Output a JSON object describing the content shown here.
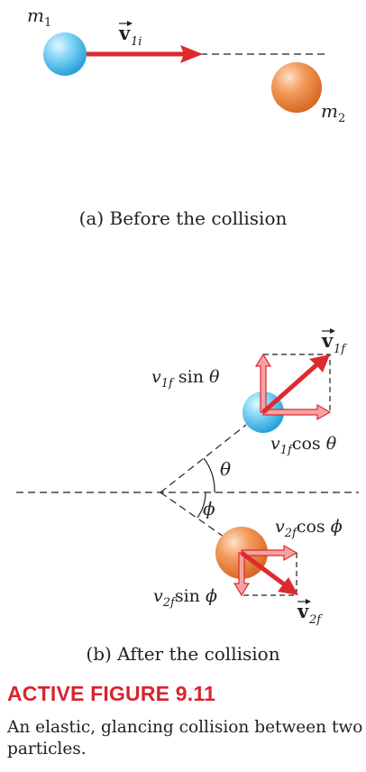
{
  "part_a": {
    "mass1_label": "m",
    "mass1_sub": "1",
    "mass2_label": "m",
    "mass2_sub": "2",
    "velocity_label": "v",
    "velocity_sub": "1i",
    "caption": "(a) Before the collision"
  },
  "part_b": {
    "v1f_label": "v",
    "v1f_sub": "1f",
    "v2f_label": "v",
    "v2f_sub": "2f",
    "v1f_sin": {
      "v": "v",
      "sub": "1f",
      "fn": " sin ",
      "angle": "θ"
    },
    "v1f_cos": {
      "v": "v",
      "sub": "1f",
      "fn": "cos ",
      "angle": "θ"
    },
    "v2f_cos": {
      "v": "v",
      "sub": "2f",
      "fn": "cos ",
      "angle": "ϕ"
    },
    "v2f_sin": {
      "v": "v",
      "sub": "2f",
      "fn": "sin ",
      "angle": "ϕ"
    },
    "theta": "θ",
    "phi": "ϕ",
    "caption": "(b) After the collision"
  },
  "figure": {
    "label": "ACTIVE FIGURE 9.11",
    "description": "An elastic, glancing collision between two particles."
  },
  "colors": {
    "arrow": "#dd2a2f",
    "component_fill": "#f4a3a3",
    "particle1": "#5bc8f0",
    "particle2": "#ee8f4e"
  }
}
